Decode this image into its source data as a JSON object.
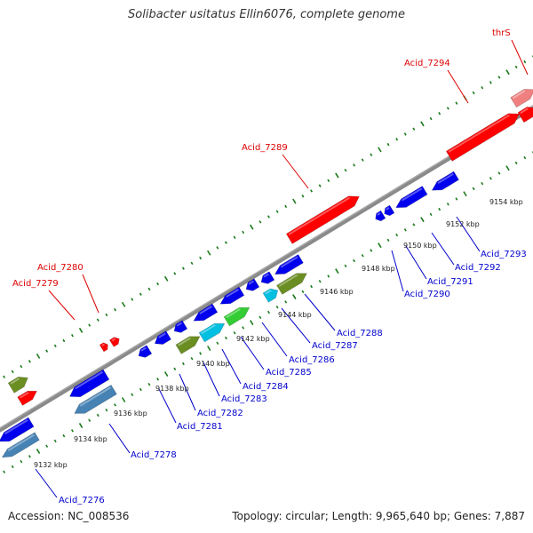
{
  "title": "Solibacter usitatus Ellin6076, complete genome",
  "footer": {
    "accession": "Accession: NC_008536",
    "topology": "Topology: circular; Length: 9,965,640 bp; Genes: 7,887"
  },
  "colors": {
    "backbone": "#888888",
    "tick": "#1a7a1a",
    "label_forward": "#dd0000",
    "label_reverse": "#0000cc"
  },
  "scale_labels": [
    "9132 kbp",
    "9134 kbp",
    "9136 kbp",
    "9138 kbp",
    "9140 kbp",
    "9142 kbp",
    "9144 kbp",
    "9146 kbp",
    "9148 kbp",
    "9150 kbp",
    "9152 kbp",
    "9154 kbp"
  ],
  "forward_labels": [
    "Acid_7279",
    "Acid_7280",
    "Acid_7289",
    "Acid_7294",
    "thrS"
  ],
  "reverse_labels": [
    "Acid_7276",
    "Acid_7278",
    "Acid_7281",
    "Acid_7282",
    "Acid_7283",
    "Acid_7284",
    "Acid_7285",
    "Acid_7286",
    "Acid_7287",
    "Acid_7288",
    "Acid_7290",
    "Acid_7291",
    "Acid_7292",
    "Acid_7293"
  ],
  "gene_colors": {
    "red": "#ff0000",
    "pink": "#f08080",
    "blue": "#0000ee",
    "steel": "#4682b4",
    "olive": "#6b8e23",
    "cyan": "#00bfe0",
    "green": "#33cc33"
  }
}
